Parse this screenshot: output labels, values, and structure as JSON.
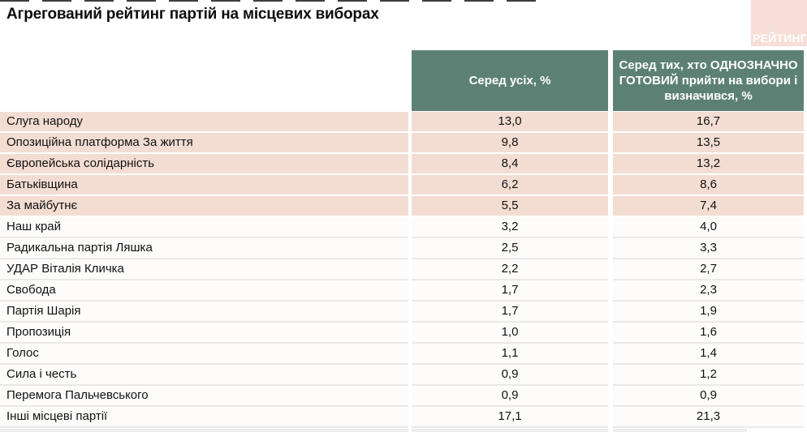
{
  "page": {
    "title": "Агрегований рейтинг партій на місцевих виборах",
    "logo_text": "РЕЙТИНГ"
  },
  "colors": {
    "header_green": "#5c8174",
    "highlight_row_pink": "#f3ddd3",
    "logo_pink": "#f7ded9",
    "header_text": "#ffffff"
  },
  "table": {
    "headers": {
      "all": "Серед усіх, %",
      "ready": "Серед тих, хто ОДНОЗНАЧНО ГОТОВИЙ прийти на вибори і визначився, %"
    },
    "rows": [
      {
        "party": "Слуга народу",
        "all": "13,0",
        "ready": "16,7",
        "highlight": true
      },
      {
        "party": "Опозиційна платформа За життя",
        "all": "9,8",
        "ready": "13,5",
        "highlight": true
      },
      {
        "party": "Європейська солідарність",
        "all": "8,4",
        "ready": "13,2",
        "highlight": true
      },
      {
        "party": "Батьківщина",
        "all": "6,2",
        "ready": "8,6",
        "highlight": true
      },
      {
        "party": "За майбутнє",
        "all": "5,5",
        "ready": "7,4",
        "highlight": true
      },
      {
        "party": "Наш край",
        "all": "3,2",
        "ready": "4,0",
        "highlight": false
      },
      {
        "party": "Радикальна партія Ляшка",
        "all": "2,5",
        "ready": "3,3",
        "highlight": false
      },
      {
        "party": "УДАР Віталія Кличка",
        "all": "2,2",
        "ready": "2,7",
        "highlight": false
      },
      {
        "party": "Свобода",
        "all": "1,7",
        "ready": "2,3",
        "highlight": false
      },
      {
        "party": "Партія Шарія",
        "all": "1,7",
        "ready": "1,9",
        "highlight": false
      },
      {
        "party": "Пропозиція",
        "all": "1,0",
        "ready": "1,6",
        "highlight": false
      },
      {
        "party": "Голос",
        "all": "1,1",
        "ready": "1,4",
        "highlight": false
      },
      {
        "party": "Сила і честь",
        "all": "0,9",
        "ready": "1,2",
        "highlight": false
      },
      {
        "party": "Перемога Пальчевського",
        "all": "0,9",
        "ready": "0,9",
        "highlight": false
      },
      {
        "party": "Інші місцеві партії",
        "all": "17,1",
        "ready": "21,3",
        "highlight": false
      }
    ]
  },
  "chart_data": {
    "type": "table",
    "title": "Агрегований рейтинг партій на місцевих виборах",
    "categories": [
      "Слуга народу",
      "Опозиційна платформа За життя",
      "Європейська солідарність",
      "Батьківщина",
      "За майбутнє",
      "Наш край",
      "Радикальна партія Ляшка",
      "УДАР Віталія Кличка",
      "Свобода",
      "Партія Шарія",
      "Пропозиція",
      "Голос",
      "Сила і честь",
      "Перемога Пальчевського",
      "Інші місцеві партії"
    ],
    "series": [
      {
        "name": "Серед усіх, %",
        "values": [
          13.0,
          9.8,
          8.4,
          6.2,
          5.5,
          3.2,
          2.5,
          2.2,
          1.7,
          1.7,
          1.0,
          1.1,
          0.9,
          0.9,
          17.1
        ]
      },
      {
        "name": "Серед тих, хто ОДНОЗНАЧНО ГОТОВИЙ прийти на вибори і визначився, %",
        "values": [
          16.7,
          13.5,
          13.2,
          8.6,
          7.4,
          4.0,
          3.3,
          2.7,
          2.3,
          1.9,
          1.6,
          1.4,
          1.2,
          0.9,
          21.3
        ]
      }
    ],
    "layout_hints": {
      "top_5_rows_highlighted_pink": true,
      "decimal_separator": "comma"
    }
  }
}
